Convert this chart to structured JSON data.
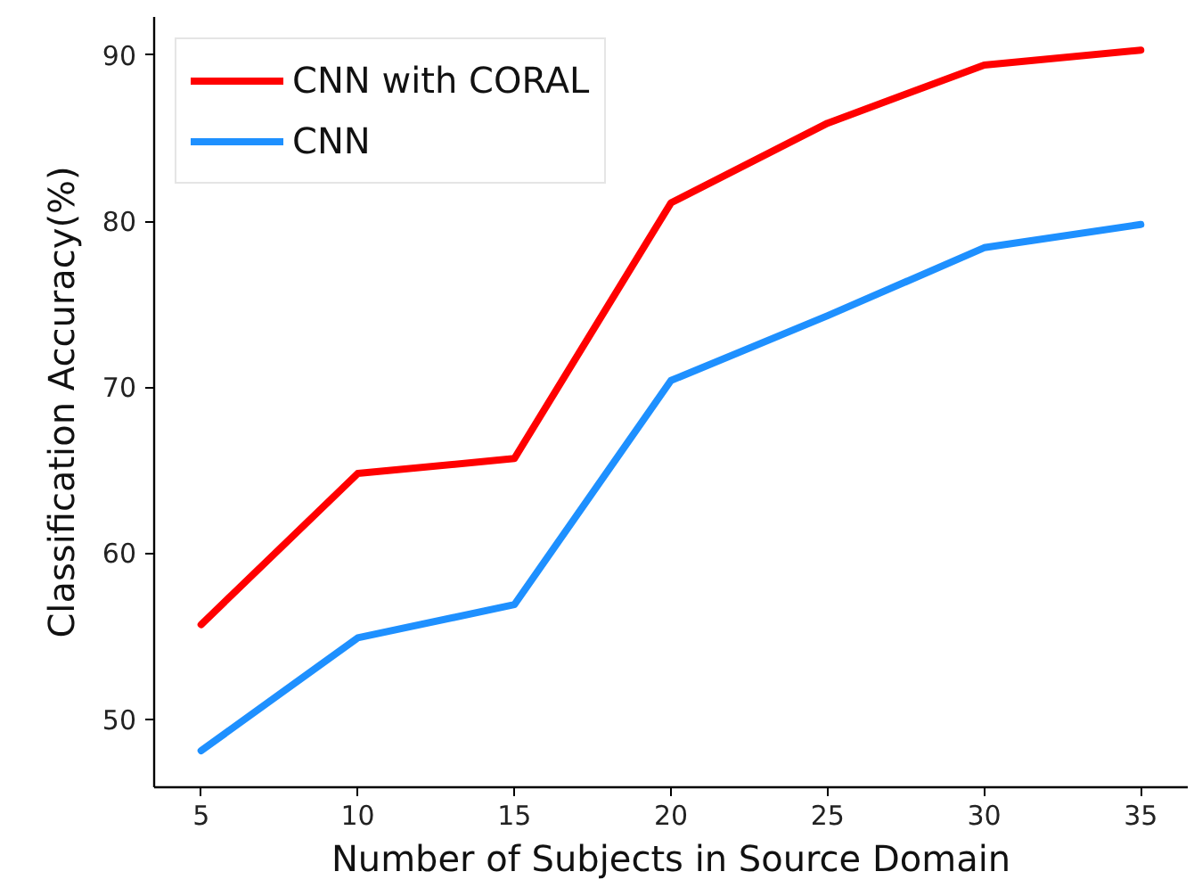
{
  "chart_data": {
    "type": "line",
    "xlabel": "Number of Subjects in Source Domain",
    "ylabel": "Classification Accuracy(%)",
    "x": [
      5,
      10,
      15,
      20,
      25,
      30,
      35
    ],
    "series": [
      {
        "name": "CNN with CORAL",
        "color": "#ff0000",
        "values": [
          55.7,
          64.8,
          65.7,
          81.1,
          85.9,
          89.4,
          90.3
        ]
      },
      {
        "name": "CNN",
        "color": "#1e90ff",
        "values": [
          48.1,
          54.9,
          56.9,
          70.4,
          74.3,
          78.4,
          79.8
        ]
      }
    ],
    "xlim": [
      3.5,
      36.5
    ],
    "ylim": [
      45.9,
      92.3
    ],
    "xticks": [
      5,
      10,
      15,
      20,
      25,
      30,
      35
    ],
    "yticks": [
      50,
      60,
      70,
      80,
      90
    ],
    "grid": false,
    "legend": "top left",
    "line_style": "solid"
  }
}
